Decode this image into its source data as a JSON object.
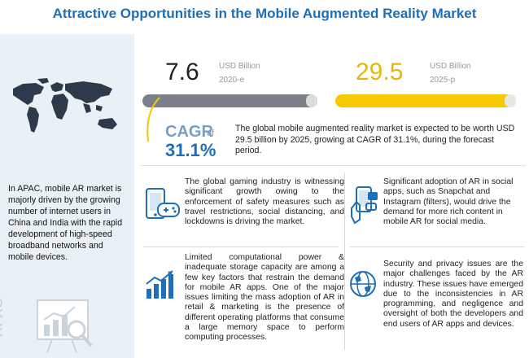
{
  "title": "Attractive Opportunities in the Mobile Augmented Reality Market",
  "sidebar": {
    "text": "In APAC, mobile AR market is majorly driven by the growing number of internet users in China and India with the rapid development of high-speed broadband networks and mobile devices.",
    "region_label": "APAC",
    "map_icon": "world-map-icon",
    "chart_icon": "analytics-chart-icon"
  },
  "metrics": {
    "value_2020": "7.6",
    "unit_2020": "USD Billion",
    "year_2020": "2020-e",
    "value_2025": "29.5",
    "unit_2025": "USD Billion",
    "year_2025": "2025-p"
  },
  "cagr": {
    "label": "CAGR",
    "of": "of",
    "value": "31.1%",
    "description": "The global mobile augmented reality market is expected to be worth USD 29.5 billion by 2025, growing at CAGR of 31.1%, during the forecast period."
  },
  "cards": {
    "gaming": "The global gaming industry is witnessing significant growth owing to the enforcement of safety measures such as travel restrictions, social distancing, and lockdowns is driving the market.",
    "social": "Significant adoption of AR in social apps, such as Snapchat and Instagram (filters), would drive the demand for more rich content in mobile AR for social media.",
    "storage": "Limited computational power & inadequate storage capacity are among a few key factors that restrain the demand for mobile AR apps. One of the major issues limiting the mass adoption of AR in retail & marketing is the presence of different operating platforms that consume a large memory space to perform computing processes.",
    "security": "Security and privacy issues are the major challenges faced by the AR industry. These issues have emerged due to the inconsistencies in AR programming, and negligence and oversight of both the developers and end users of AR apps and devices."
  },
  "colors": {
    "title": "#1d6fb8",
    "bar_2020": "#7b8088",
    "bar_2025": "#f6c800",
    "value_2025": "#e8b800"
  }
}
